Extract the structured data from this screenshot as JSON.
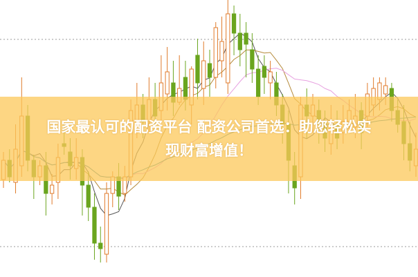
{
  "banner": {
    "line1": "国家最认可的配资平台 配资公司首选：助您轻松实",
    "line2": "现财富增值！"
  },
  "chart_data": {
    "type": "candlestick",
    "ylim": [
      0,
      100
    ],
    "grid": "dotted horizontal",
    "colors": {
      "up": "#e07a2a",
      "down": "#6aa51e",
      "ma5": "#555555",
      "ma10": "#b58a3a",
      "ma20": "#e7a1e0",
      "ma60": "#3f8f9a"
    },
    "moving_averages": [
      5,
      10,
      20,
      60
    ],
    "candles": [
      [
        35,
        45,
        32,
        42
      ],
      [
        42,
        46,
        34,
        36
      ],
      [
        34,
        55,
        30,
        46
      ],
      [
        40,
        72,
        36,
        58
      ],
      [
        58,
        62,
        38,
        42
      ],
      [
        42,
        44,
        28,
        36
      ],
      [
        36,
        42,
        33,
        40
      ],
      [
        40,
        45,
        22,
        30
      ],
      [
        30,
        37,
        26,
        33
      ],
      [
        34,
        48,
        28,
        43
      ],
      [
        48,
        55,
        44,
        47
      ],
      [
        45,
        50,
        35,
        40
      ],
      [
        39,
        50,
        35,
        43
      ],
      [
        43,
        46,
        22,
        33
      ],
      [
        33,
        38,
        20,
        25
      ],
      [
        25,
        30,
        6,
        12
      ],
      [
        12,
        18,
        5,
        10
      ],
      [
        8,
        34,
        5,
        30
      ],
      [
        30,
        38,
        25,
        36
      ],
      [
        36,
        41,
        24,
        29
      ],
      [
        30,
        40,
        27,
        36
      ],
      [
        36,
        64,
        33,
        60
      ],
      [
        55,
        70,
        50,
        62
      ],
      [
        62,
        66,
        50,
        56
      ],
      [
        56,
        72,
        52,
        64
      ],
      [
        64,
        70,
        55,
        58
      ],
      [
        60,
        80,
        56,
        70
      ],
      [
        66,
        83,
        60,
        74
      ],
      [
        70,
        78,
        58,
        63
      ],
      [
        63,
        80,
        62,
        68
      ],
      [
        72,
        78,
        60,
        64
      ],
      [
        62,
        76,
        55,
        75
      ],
      [
        80,
        86,
        64,
        70
      ],
      [
        68,
        85,
        62,
        78
      ],
      [
        77,
        82,
        65,
        72
      ],
      [
        72,
        92,
        68,
        90
      ],
      [
        78,
        94,
        72,
        85
      ],
      [
        70,
        100,
        66,
        95
      ],
      [
        95,
        98,
        80,
        88
      ],
      [
        88,
        95,
        76,
        82
      ],
      [
        88,
        92,
        72,
        84
      ],
      [
        82,
        88,
        70,
        75
      ],
      [
        75,
        80,
        62,
        65
      ],
      [
        76,
        80,
        66,
        72
      ],
      [
        70,
        78,
        64,
        74
      ],
      [
        70,
        74,
        58,
        62
      ],
      [
        62,
        66,
        48,
        55
      ],
      [
        55,
        60,
        30,
        42
      ],
      [
        40,
        45,
        26,
        32
      ],
      [
        36,
        65,
        28,
        62
      ],
      [
        62,
        68,
        50,
        58
      ],
      [
        58,
        66,
        52,
        62
      ],
      [
        60,
        64,
        48,
        55
      ],
      [
        56,
        60,
        45,
        50
      ],
      [
        48,
        62,
        44,
        54
      ],
      [
        55,
        60,
        46,
        50
      ],
      [
        52,
        62,
        48,
        56
      ],
      [
        56,
        64,
        52,
        60
      ],
      [
        54,
        66,
        50,
        58
      ],
      [
        60,
        63,
        46,
        52
      ],
      [
        58,
        70,
        54,
        66
      ],
      [
        62,
        72,
        58,
        68
      ],
      [
        64,
        72,
        60,
        70
      ],
      [
        66,
        72,
        62,
        69
      ],
      [
        68,
        70,
        56,
        60
      ],
      [
        60,
        64,
        52,
        55
      ],
      [
        56,
        62,
        42,
        48
      ],
      [
        48,
        56,
        38,
        42
      ],
      [
        40,
        52,
        36,
        46
      ]
    ]
  }
}
